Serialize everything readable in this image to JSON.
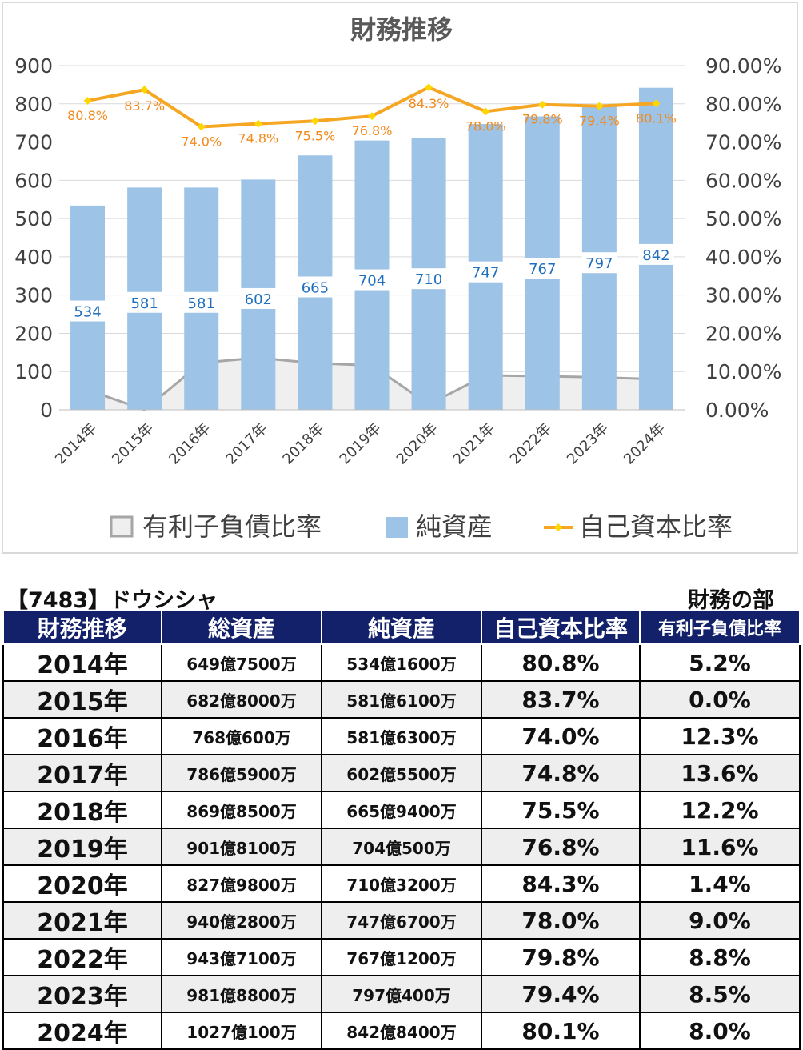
{
  "chart_data": {
    "type": "bar",
    "title": "財務推移",
    "categories": [
      "2014年",
      "2015年",
      "2016年",
      "2017年",
      "2018年",
      "2019年",
      "2020年",
      "2021年",
      "2022年",
      "2023年",
      "2024年"
    ],
    "series": [
      {
        "name": "有利子負債比率",
        "kind": "area",
        "axis": "right",
        "color": "#a6a6a6",
        "fill": "#efefef",
        "values": [
          5.2,
          0.0,
          12.3,
          13.6,
          12.2,
          11.6,
          1.4,
          9.0,
          8.8,
          8.5,
          8.0
        ]
      },
      {
        "name": "純資産",
        "kind": "bar",
        "axis": "left",
        "color": "#9dc3e6",
        "values": [
          534,
          581,
          581,
          602,
          665,
          704,
          710,
          747,
          767,
          797,
          842
        ]
      },
      {
        "name": "自己資本比率",
        "kind": "line",
        "axis": "right",
        "color": "#f5a623",
        "marker_color": "#ffd700",
        "values": [
          80.8,
          83.7,
          74.0,
          74.8,
          75.5,
          76.8,
          84.3,
          78.0,
          79.8,
          79.4,
          80.1
        ],
        "labels": [
          "80.8%",
          "83.7%",
          "74.0%",
          "74.8%",
          "75.5%",
          "76.8%",
          "84.3%",
          "78.0%",
          "79.8%",
          "79.4%",
          "80.1%"
        ]
      }
    ],
    "ylim": [
      0,
      900
    ],
    "yticks": [
      "0",
      "100",
      "200",
      "300",
      "400",
      "500",
      "600",
      "700",
      "800",
      "900"
    ],
    "y2lim": [
      0,
      90
    ],
    "y2ticks": [
      "0.00%",
      "10.00%",
      "20.00%",
      "30.00%",
      "40.00%",
      "50.00%",
      "60.00%",
      "70.00%",
      "80.00%",
      "90.00%"
    ],
    "grid": true,
    "legend": "bottom"
  },
  "header": {
    "company": "【7483】ドウシシャ",
    "section": "財務の部"
  },
  "table": {
    "columns": [
      "財務推移",
      "総資産",
      "純資産",
      "自己資本比率",
      "有利子負債比率"
    ],
    "rows": [
      [
        "2014年",
        "649億7500万",
        "534億1600万",
        "80.8%",
        "5.2%"
      ],
      [
        "2015年",
        "682億8000万",
        "581億6100万",
        "83.7%",
        "0.0%"
      ],
      [
        "2016年",
        "768億600万",
        "581億6300万",
        "74.0%",
        "12.3%"
      ],
      [
        "2017年",
        "786億5900万",
        "602億5500万",
        "74.8%",
        "13.6%"
      ],
      [
        "2018年",
        "869億8500万",
        "665億9400万",
        "75.5%",
        "12.2%"
      ],
      [
        "2019年",
        "901億8100万",
        "704億500万",
        "76.8%",
        "11.6%"
      ],
      [
        "2020年",
        "827億9800万",
        "710億3200万",
        "84.3%",
        "1.4%"
      ],
      [
        "2021年",
        "940億2800万",
        "747億6700万",
        "78.0%",
        "9.0%"
      ],
      [
        "2022年",
        "943億7100万",
        "767億1200万",
        "79.8%",
        "8.8%"
      ],
      [
        "2023年",
        "981億8800万",
        "797億400万",
        "79.4%",
        "8.5%"
      ],
      [
        "2024年",
        "1027億100万",
        "842億8400万",
        "80.1%",
        "8.0%"
      ]
    ]
  }
}
